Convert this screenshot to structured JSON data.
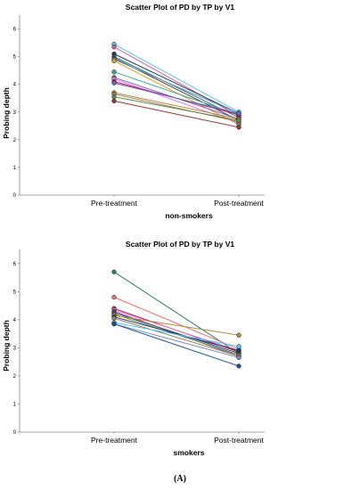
{
  "figure_label": "(A)",
  "chart_data": [
    {
      "type": "line",
      "title": "Scatter Plot of PD by TP by V1",
      "xlabel": "non-smokers",
      "ylabel": "Probing depth",
      "categories": [
        "Pre-treatment",
        "Post-treatment"
      ],
      "ylim": [
        0,
        6.5
      ],
      "yticks": [
        0,
        1,
        2,
        3,
        4,
        5,
        6
      ],
      "grid": false,
      "series": [
        {
          "values": [
            5.45,
            3.0
          ],
          "color": "#4fc3f7"
        },
        {
          "values": [
            5.35,
            2.85
          ],
          "color": "#e05a8a"
        },
        {
          "values": [
            5.1,
            2.95
          ],
          "color": "#1b3a6b"
        },
        {
          "values": [
            5.0,
            2.8
          ],
          "color": "#2e7d6b"
        },
        {
          "values": [
            4.95,
            2.7
          ],
          "color": "#444444"
        },
        {
          "values": [
            4.9,
            2.95
          ],
          "color": "#6e8fb3"
        },
        {
          "values": [
            4.85,
            2.55
          ],
          "color": "#d4a020"
        },
        {
          "values": [
            4.45,
            2.9
          ],
          "color": "#3aa39a"
        },
        {
          "values": [
            4.25,
            2.75
          ],
          "color": "#7e57c2"
        },
        {
          "values": [
            4.2,
            2.6
          ],
          "color": "#e07bd0"
        },
        {
          "values": [
            4.1,
            2.9
          ],
          "color": "#c2185b"
        },
        {
          "values": [
            4.05,
            2.95
          ],
          "color": "#5c6bc0"
        },
        {
          "values": [
            3.7,
            2.75
          ],
          "color": "#b08a3a"
        },
        {
          "values": [
            3.65,
            2.65
          ],
          "color": "#9e7d5a"
        },
        {
          "values": [
            3.55,
            2.7
          ],
          "color": "#5d8a4a"
        },
        {
          "values": [
            3.4,
            2.45
          ],
          "color": "#8d3a3a"
        }
      ]
    },
    {
      "type": "line",
      "title": "Scatter Plot of PD by TP by V1",
      "xlabel": "smokers",
      "ylabel": "Probing depth",
      "categories": [
        "Pre-treatment",
        "Post-treatment"
      ],
      "ylim": [
        0,
        6.5
      ],
      "yticks": [
        0,
        1,
        2,
        3,
        4,
        5,
        6
      ],
      "grid": false,
      "series": [
        {
          "values": [
            5.7,
            2.8
          ],
          "color": "#2e7d6b"
        },
        {
          "values": [
            4.8,
            2.95
          ],
          "color": "#e57373"
        },
        {
          "values": [
            4.4,
            2.85
          ],
          "color": "#c2185b"
        },
        {
          "values": [
            4.35,
            2.9
          ],
          "color": "#e07bd0"
        },
        {
          "values": [
            4.3,
            2.7
          ],
          "color": "#7e57c2"
        },
        {
          "values": [
            4.25,
            2.8
          ],
          "color": "#444444"
        },
        {
          "values": [
            4.2,
            2.75
          ],
          "color": "#5d8a4a"
        },
        {
          "values": [
            4.15,
            3.45
          ],
          "color": "#b08a3a"
        },
        {
          "values": [
            4.1,
            2.9
          ],
          "color": "#1b3a6b"
        },
        {
          "values": [
            4.05,
            2.7
          ],
          "color": "#9e7d5a"
        },
        {
          "values": [
            3.9,
            3.05
          ],
          "color": "#4fc3f7"
        },
        {
          "values": [
            3.85,
            2.65
          ],
          "color": "#6e8fb3"
        },
        {
          "values": [
            3.85,
            2.35
          ],
          "color": "#1a4f9e"
        }
      ]
    }
  ]
}
